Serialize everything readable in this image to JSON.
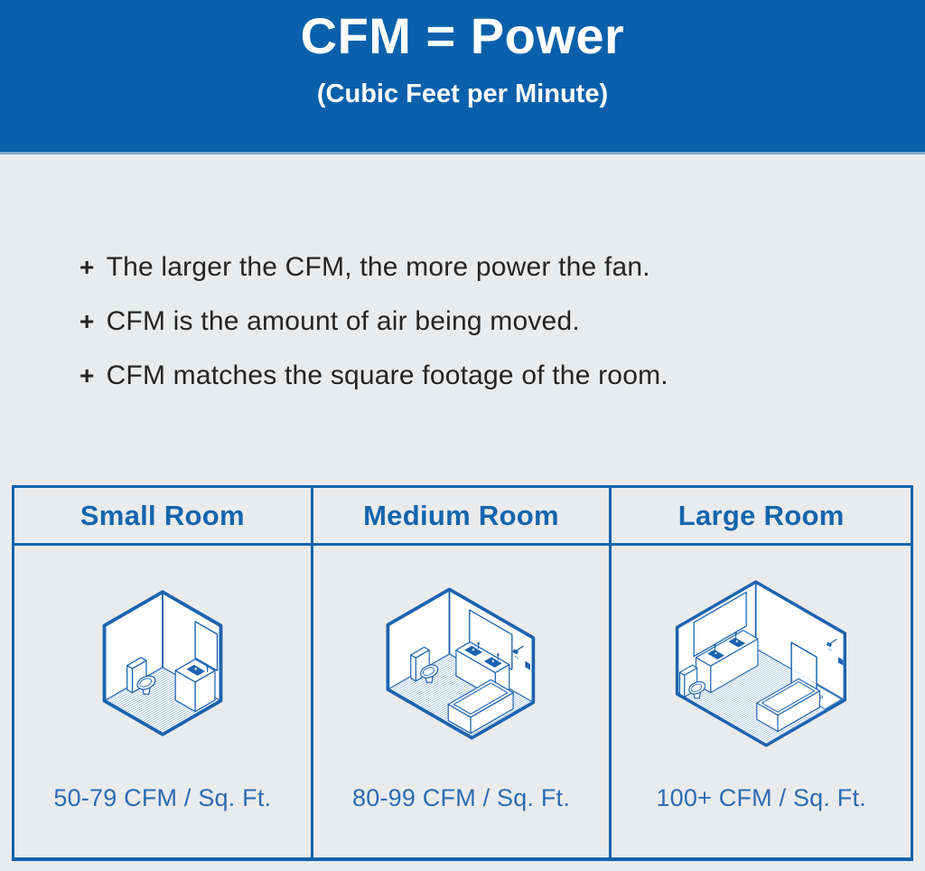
{
  "header": {
    "title": "CFM = Power",
    "subtitle": "(Cubic Feet per Minute)"
  },
  "bullets": [
    {
      "marker": "+",
      "text": "The larger the CFM, the more power the fan."
    },
    {
      "marker": "+",
      "text": "CFM is the amount of air being moved."
    },
    {
      "marker": "+",
      "text": "CFM matches the square footage of the room."
    }
  ],
  "table": {
    "columns": [
      {
        "header": "Small Room",
        "illustration": "small-bathroom-isometric-icon",
        "caption": "50-79 CFM / Sq. Ft."
      },
      {
        "header": "Medium Room",
        "illustration": "medium-bathroom-isometric-icon",
        "caption": "80-99 CFM / Sq. Ft."
      },
      {
        "header": "Large Room",
        "illustration": "large-bathroom-isometric-icon",
        "caption": "100+ CFM / Sq. Ft."
      }
    ]
  },
  "colors": {
    "header_bg": "#0a60ab",
    "table_border_blue": "#1263ac",
    "header_text_blue": "#1365ae",
    "caption_blue": "#2a6cb5",
    "body_text": "#242424",
    "page_bg": "#eaebec",
    "illustration_blue": "#1c63af"
  }
}
